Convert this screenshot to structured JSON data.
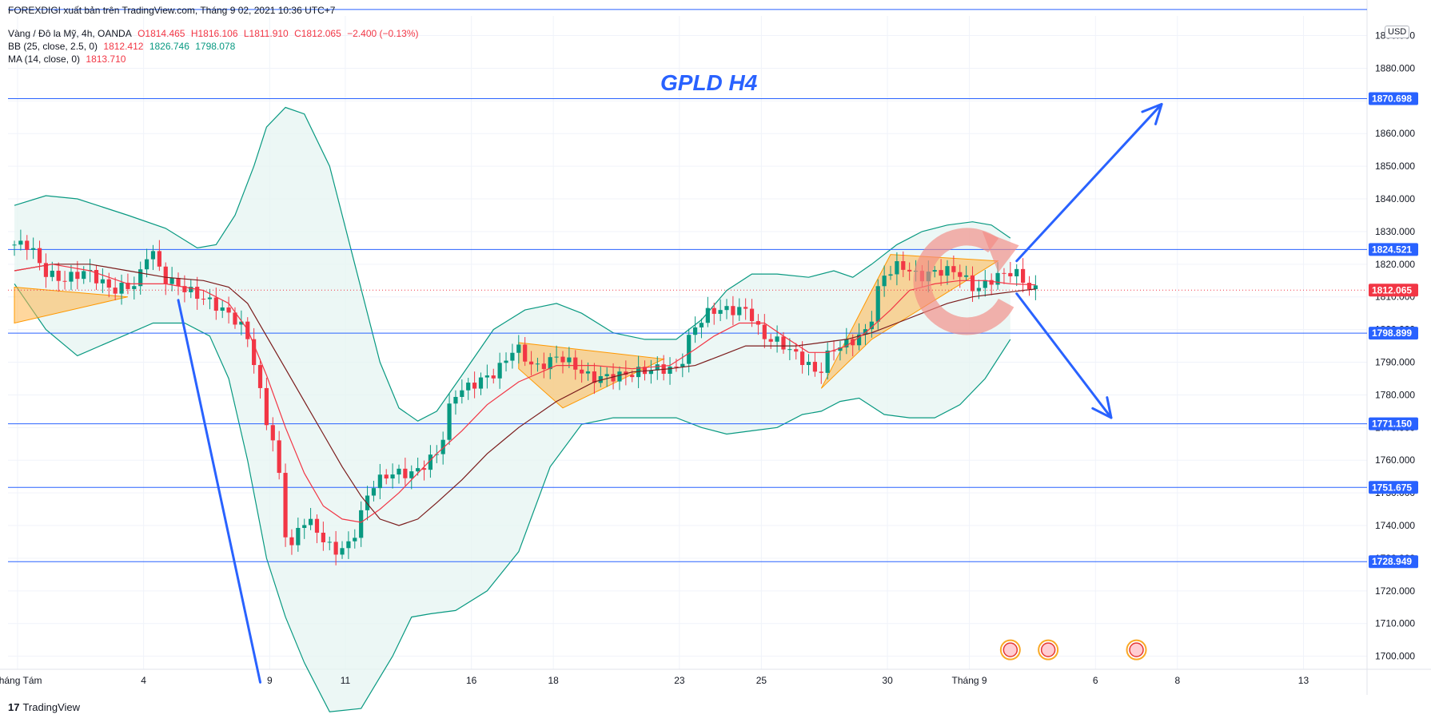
{
  "header": {
    "attribution": "FOREXDIGI xuất bản trên TradingView.com, Tháng 9 02, 2021 10:36 UTC+7",
    "symbol_line": {
      "name": "Vàng / Đô la Mỹ, 4h, OANDA",
      "o": "O1814.465",
      "h": "H1816.106",
      "l": "L1811.910",
      "c": "C1812.065",
      "change": "−2.400 (−0.13%)"
    },
    "bb_line": {
      "name": "BB (25, close, 2.5, 0)",
      "basis": "1812.412",
      "upper": "1826.746",
      "lower": "1798.078"
    },
    "ma_line": {
      "name": "MA (14, close, 0)",
      "value": "1813.710"
    }
  },
  "chart_title": "GPLD H4",
  "currency": "USD",
  "footer": {
    "logo_text": "TradingView"
  },
  "chart_data": {
    "type": "candlestick",
    "symbol": "XAUUSD",
    "timeframe": "4h",
    "ylim": [
      1696,
      1896
    ],
    "y_ticks": [
      1700,
      1710,
      1720,
      1730,
      1740,
      1750,
      1760,
      1770,
      1780,
      1790,
      1800,
      1810,
      1820,
      1830,
      1840,
      1850,
      1860,
      1870,
      1880,
      1890
    ],
    "x_ticks": [
      {
        "bar": 0.5,
        "label": "Tháng Tám"
      },
      {
        "bar": 20.5,
        "label": "4"
      },
      {
        "bar": 40.5,
        "label": "9"
      },
      {
        "bar": 52.5,
        "label": "11"
      },
      {
        "bar": 72.5,
        "label": "16"
      },
      {
        "bar": 85.5,
        "label": "18"
      },
      {
        "bar": 105.5,
        "label": "23"
      },
      {
        "bar": 118.5,
        "label": "25"
      },
      {
        "bar": 138.5,
        "label": "30"
      },
      {
        "bar": 151.5,
        "label": "Tháng 9"
      },
      {
        "bar": 171.5,
        "label": "6"
      },
      {
        "bar": 184.5,
        "label": "8"
      },
      {
        "bar": 204.5,
        "label": "13"
      }
    ],
    "horizontal_levels": [
      1898.0,
      1870.698,
      1824.521,
      1798.899,
      1771.15,
      1751.675,
      1728.949
    ],
    "price_labels": [
      {
        "value": 1870.698,
        "text": "1870.698",
        "color": "#2962ff"
      },
      {
        "value": 1824.521,
        "text": "1824.521",
        "color": "#2962ff"
      },
      {
        "value": 1812.065,
        "text": "1812.065",
        "color": "#f23645"
      },
      {
        "value": 1798.899,
        "text": "1798.899",
        "color": "#2962ff"
      },
      {
        "value": 1771.15,
        "text": "1771.150",
        "color": "#2962ff"
      },
      {
        "value": 1751.675,
        "text": "1751.675",
        "color": "#2962ff"
      },
      {
        "value": 1728.949,
        "text": "1728.949",
        "color": "#2962ff"
      }
    ],
    "ohlc_key_points": [
      [
        0,
        1826
      ],
      [
        3,
        1826
      ],
      [
        5,
        1818
      ],
      [
        8,
        1815
      ],
      [
        12,
        1818
      ],
      [
        16,
        1812
      ],
      [
        20,
        1814
      ],
      [
        22,
        1826
      ],
      [
        24,
        1816
      ],
      [
        28,
        1812
      ],
      [
        32,
        1808
      ],
      [
        35,
        1804
      ],
      [
        37,
        1800
      ],
      [
        38,
        1795
      ],
      [
        39,
        1785
      ],
      [
        40,
        1776
      ],
      [
        41,
        1768
      ],
      [
        42,
        1764
      ],
      [
        43,
        1746
      ],
      [
        44,
        1730
      ],
      [
        46,
        1742
      ],
      [
        48,
        1740
      ],
      [
        50,
        1734
      ],
      [
        52,
        1732
      ],
      [
        54,
        1735
      ],
      [
        57,
        1752
      ],
      [
        60,
        1756
      ],
      [
        64,
        1756
      ],
      [
        68,
        1763
      ],
      [
        70,
        1780
      ],
      [
        74,
        1784
      ],
      [
        77,
        1787
      ],
      [
        80,
        1795
      ],
      [
        83,
        1788
      ],
      [
        87,
        1792
      ],
      [
        92,
        1785
      ],
      [
        97,
        1786
      ],
      [
        102,
        1788
      ],
      [
        106,
        1788
      ],
      [
        108,
        1800
      ],
      [
        111,
        1806
      ],
      [
        114,
        1806
      ],
      [
        117,
        1806
      ],
      [
        119,
        1798
      ],
      [
        122,
        1796
      ],
      [
        126,
        1790
      ],
      [
        128,
        1786
      ],
      [
        130,
        1794
      ],
      [
        133,
        1796
      ],
      [
        136,
        1800
      ],
      [
        138,
        1816
      ],
      [
        141,
        1820
      ],
      [
        144,
        1816
      ],
      [
        147,
        1818
      ],
      [
        150,
        1818
      ],
      [
        153,
        1812
      ],
      [
        156,
        1816
      ],
      [
        159,
        1818
      ],
      [
        161,
        1814
      ],
      [
        162,
        1812
      ]
    ],
    "bollinger_upper_points": [
      [
        0,
        1838
      ],
      [
        5,
        1841
      ],
      [
        10,
        1840
      ],
      [
        18,
        1835
      ],
      [
        24,
        1831
      ],
      [
        29,
        1825
      ],
      [
        32,
        1826
      ],
      [
        35,
        1835
      ],
      [
        38,
        1850
      ],
      [
        40,
        1862
      ],
      [
        43,
        1868
      ],
      [
        46,
        1866
      ],
      [
        50,
        1850
      ],
      [
        54,
        1820
      ],
      [
        58,
        1790
      ],
      [
        61,
        1776
      ],
      [
        64,
        1772
      ],
      [
        67,
        1775
      ],
      [
        71,
        1786
      ],
      [
        76,
        1800
      ],
      [
        81,
        1806
      ],
      [
        86,
        1808
      ],
      [
        90,
        1805
      ],
      [
        95,
        1799
      ],
      [
        100,
        1797
      ],
      [
        105,
        1797
      ],
      [
        109,
        1803
      ],
      [
        113,
        1812
      ],
      [
        117,
        1817
      ],
      [
        121,
        1817
      ],
      [
        126,
        1816
      ],
      [
        130,
        1818
      ],
      [
        133,
        1816
      ],
      [
        136,
        1820
      ],
      [
        140,
        1826
      ],
      [
        144,
        1830
      ],
      [
        148,
        1832
      ],
      [
        152,
        1833
      ],
      [
        155,
        1832
      ],
      [
        158,
        1828
      ]
    ],
    "bollinger_lower_points": [
      [
        0,
        1814
      ],
      [
        5,
        1800
      ],
      [
        10,
        1792
      ],
      [
        16,
        1797
      ],
      [
        22,
        1802
      ],
      [
        27,
        1802
      ],
      [
        31,
        1798
      ],
      [
        34,
        1785
      ],
      [
        37,
        1760
      ],
      [
        40,
        1730
      ],
      [
        43,
        1712
      ],
      [
        46,
        1698
      ],
      [
        50,
        1683
      ],
      [
        55,
        1684
      ],
      [
        60,
        1700
      ],
      [
        63,
        1712
      ],
      [
        66,
        1713
      ],
      [
        70,
        1714
      ],
      [
        75,
        1720
      ],
      [
        80,
        1732
      ],
      [
        85,
        1758
      ],
      [
        90,
        1771
      ],
      [
        95,
        1773
      ],
      [
        100,
        1773
      ],
      [
        105,
        1773
      ],
      [
        109,
        1770
      ],
      [
        113,
        1768
      ],
      [
        117,
        1769
      ],
      [
        121,
        1770
      ],
      [
        125,
        1774
      ],
      [
        128,
        1775
      ],
      [
        131,
        1778
      ],
      [
        134,
        1779
      ],
      [
        138,
        1774
      ],
      [
        142,
        1773
      ],
      [
        146,
        1773
      ],
      [
        150,
        1777
      ],
      [
        154,
        1785
      ],
      [
        158,
        1797
      ]
    ],
    "ma_red_points": [
      [
        0,
        1818
      ],
      [
        6,
        1820
      ],
      [
        12,
        1818
      ],
      [
        18,
        1814
      ],
      [
        24,
        1814
      ],
      [
        30,
        1812
      ],
      [
        34,
        1808
      ],
      [
        37,
        1800
      ],
      [
        40,
        1786
      ],
      [
        43,
        1770
      ],
      [
        46,
        1756
      ],
      [
        49,
        1746
      ],
      [
        52,
        1742
      ],
      [
        55,
        1741
      ],
      [
        58,
        1745
      ],
      [
        61,
        1750
      ],
      [
        64,
        1756
      ],
      [
        67,
        1762
      ],
      [
        71,
        1769
      ],
      [
        75,
        1777
      ],
      [
        80,
        1784
      ],
      [
        86,
        1789
      ],
      [
        92,
        1789
      ],
      [
        98,
        1788
      ],
      [
        104,
        1789
      ],
      [
        108,
        1794
      ],
      [
        111,
        1798
      ],
      [
        115,
        1802
      ],
      [
        119,
        1802
      ],
      [
        122,
        1798
      ],
      [
        126,
        1793
      ],
      [
        129,
        1793
      ],
      [
        132,
        1795
      ],
      [
        135,
        1799
      ],
      [
        139,
        1806
      ],
      [
        142,
        1812
      ],
      [
        146,
        1814
      ],
      [
        150,
        1815
      ],
      [
        154,
        1815
      ],
      [
        158,
        1814
      ],
      [
        162,
        1813.7
      ]
    ],
    "bb_basis_points": [
      [
        0,
        1818
      ],
      [
        6,
        1820
      ],
      [
        12,
        1820
      ],
      [
        18,
        1818
      ],
      [
        24,
        1816
      ],
      [
        30,
        1815
      ],
      [
        34,
        1813
      ],
      [
        37,
        1808
      ],
      [
        40,
        1798
      ],
      [
        43,
        1788
      ],
      [
        46,
        1778
      ],
      [
        49,
        1768
      ],
      [
        52,
        1758
      ],
      [
        55,
        1749
      ],
      [
        58,
        1742
      ],
      [
        61,
        1740
      ],
      [
        64,
        1742
      ],
      [
        67,
        1747
      ],
      [
        71,
        1754
      ],
      [
        75,
        1762
      ],
      [
        80,
        1770
      ],
      [
        86,
        1778
      ],
      [
        92,
        1784
      ],
      [
        98,
        1787
      ],
      [
        104,
        1788
      ],
      [
        108,
        1789
      ],
      [
        112,
        1792
      ],
      [
        116,
        1795
      ],
      [
        120,
        1795
      ],
      [
        124,
        1795
      ],
      [
        128,
        1796
      ],
      [
        132,
        1797
      ],
      [
        136,
        1799
      ],
      [
        140,
        1802
      ],
      [
        144,
        1805
      ],
      [
        148,
        1808
      ],
      [
        152,
        1810
      ],
      [
        156,
        1811
      ],
      [
        160,
        1812
      ],
      [
        162,
        1812.4
      ]
    ],
    "triangle_patterns": [
      [
        [
          0,
          1813
        ],
        [
          18,
          1810
        ],
        [
          0,
          1802
        ]
      ],
      [
        [
          80,
          1796
        ],
        [
          103,
          1791
        ],
        [
          87,
          1776
        ],
        [
          80,
          1788
        ]
      ],
      [
        [
          128,
          1782
        ],
        [
          136,
          1812
        ],
        [
          139,
          1823
        ],
        [
          156,
          1821
        ],
        [
          136,
          1797
        ]
      ]
    ],
    "trend_lines": [
      {
        "from": [
          26,
          1809
        ],
        "to": [
          39,
          1692
        ]
      },
      {
        "from": [
          159,
          1821
        ],
        "to": [
          182,
          1869
        ],
        "arrow": true
      },
      {
        "from": [
          159,
          1811
        ],
        "to": [
          174,
          1773
        ],
        "arrow": true
      }
    ],
    "event_markers": [
      {
        "bar": 158,
        "value": 1700
      },
      {
        "bar": 164,
        "value": 1700
      },
      {
        "bar": 178,
        "value": 1700
      }
    ],
    "colors": {
      "up": "#089981",
      "down": "#f23645",
      "level": "#2962ff",
      "bands": "#089981",
      "band_fill": "#e6f4f1",
      "ma": "#f23645",
      "basis": "#7b1c1c",
      "triangle": "#ffb74d"
    }
  }
}
